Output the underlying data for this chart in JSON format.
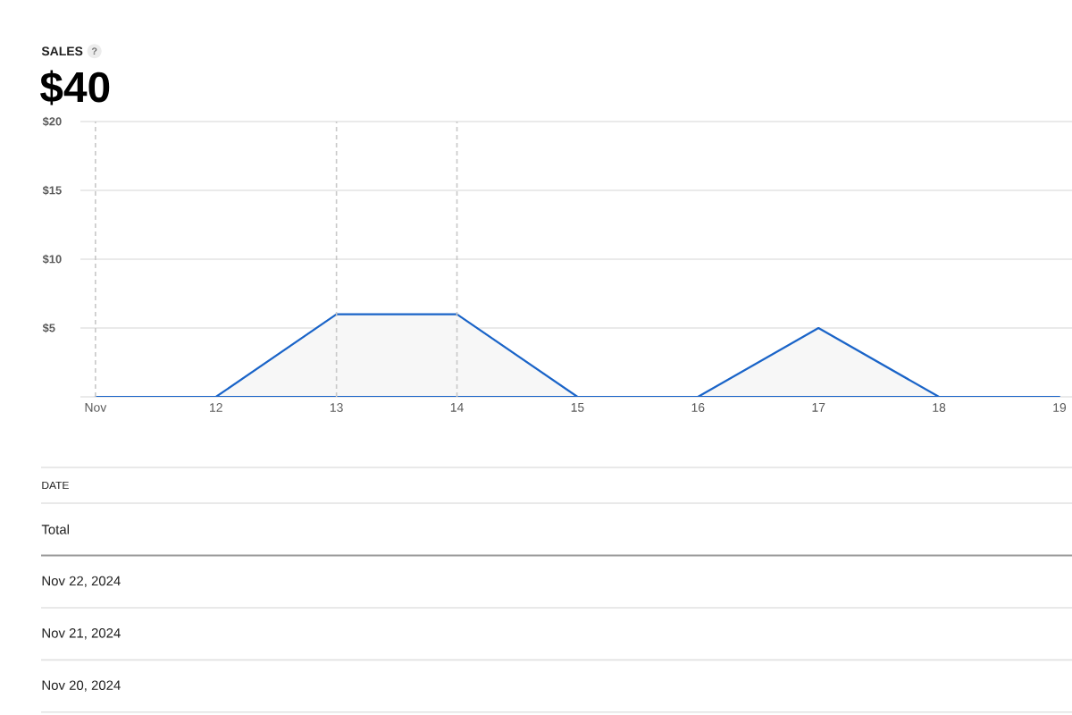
{
  "chart_data": {
    "type": "area",
    "title": "SALES",
    "subtitle": "$40",
    "x": [
      "2024-11-11",
      "2024-11-12",
      "2024-11-13",
      "2024-11-14",
      "2024-11-15",
      "2024-11-16",
      "2024-11-17",
      "2024-11-18",
      "2024-11-19"
    ],
    "values": [
      0,
      0,
      6,
      6,
      0,
      0,
      5,
      0,
      0
    ],
    "color": "#1a64c8",
    "xlim": [
      "2024-11-10T21:00",
      "2024-11-19T02:30"
    ],
    "xticks": [
      {
        "value": "2024-11-11",
        "label": "Nov"
      },
      {
        "value": "2024-11-12",
        "label": "12"
      },
      {
        "value": "2024-11-13",
        "label": "13"
      },
      {
        "value": "2024-11-14",
        "label": "14"
      },
      {
        "value": "2024-11-15",
        "label": "15"
      },
      {
        "value": "2024-11-16",
        "label": "16"
      },
      {
        "value": "2024-11-17",
        "label": "17"
      },
      {
        "value": "2024-11-18",
        "label": "18"
      },
      {
        "value": "2024-11-19",
        "label": "19"
      }
    ],
    "ylim": [
      0,
      20
    ],
    "yticks": [
      {
        "value": 0,
        "label": null
      },
      {
        "value": 5,
        "label": "$5"
      },
      {
        "value": 10,
        "label": "$10"
      },
      {
        "value": 15,
        "label": "$15"
      },
      {
        "value": 20,
        "label": "$20"
      }
    ],
    "grid": "y",
    "ref_lines": [
      {
        "axis": "x",
        "value": "2024-11-11",
        "color": "#c8c8c8",
        "line_style": "dashed"
      },
      {
        "axis": "x",
        "value": "2024-11-13",
        "color": "#c8c8c8",
        "line_style": "dashed"
      },
      {
        "axis": "x",
        "value": "2024-11-14",
        "color": "#c8c8c8",
        "line_style": "dashed"
      }
    ],
    "annotations": [
      "?",
      "DATE",
      "Total",
      "Nov 22, 2024",
      "Nov 21, 2024",
      "Nov 20, 2024"
    ]
  }
}
